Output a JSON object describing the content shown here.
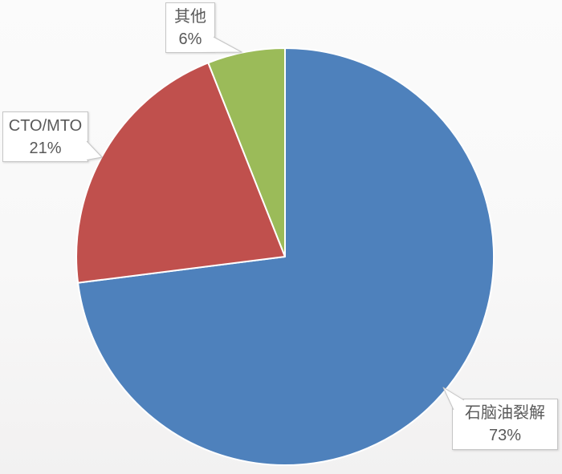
{
  "chart_data": {
    "type": "pie",
    "title": "",
    "categories": [
      "石脑油裂解",
      "CTO/MTO",
      "其他"
    ],
    "values": [
      73,
      21,
      6
    ],
    "unit": "%",
    "colors": [
      "#4E81BC",
      "#C0504D",
      "#9BBB59"
    ],
    "ids": [
      "naphtha-cracking",
      "cto-mto",
      "other"
    ],
    "labels": [
      {
        "name": "石脑油裂解",
        "percent": "73%"
      },
      {
        "name": "CTO/MTO",
        "percent": "21%"
      },
      {
        "name": "其他",
        "percent": "6%"
      }
    ],
    "start_angle_deg": 0,
    "direction": "clockwise",
    "legend": "none",
    "label_style": "callout-boxes-with-leader-pointers"
  },
  "styles": {
    "slice_stroke": "#FFFFFF",
    "callout_bg": "#FFFFFF",
    "callout_border": "#C6C6C6",
    "text_color": "#595959",
    "background_top": "#FBFBFB",
    "background_bottom": "#F2F1F1"
  }
}
